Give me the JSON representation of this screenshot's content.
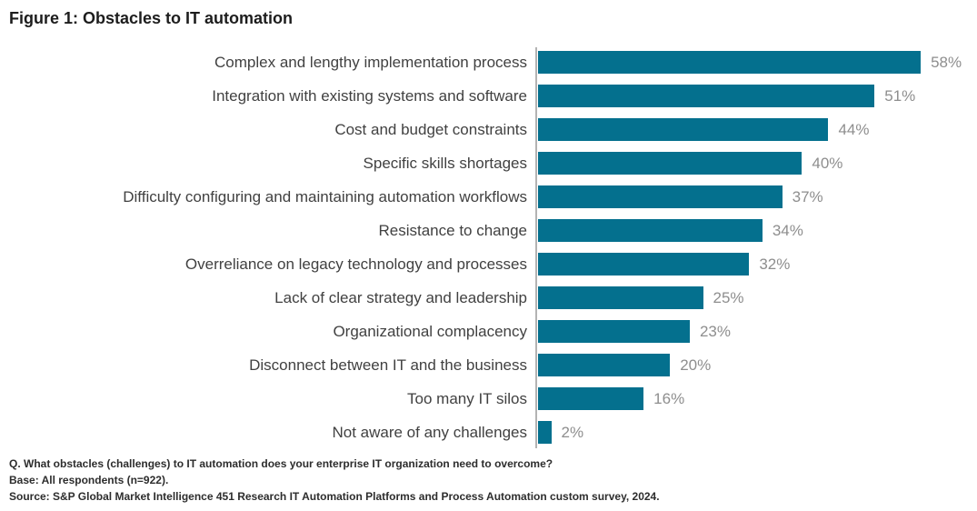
{
  "title": "Figure 1: Obstacles to IT automation",
  "chart_data": {
    "type": "bar",
    "orientation": "horizontal",
    "title": "Figure 1: Obstacles to IT automation",
    "categories": [
      "Complex and lengthy implementation process",
      "Integration with existing systems and software",
      "Cost and budget constraints",
      "Specific skills shortages",
      "Difficulty configuring and maintaining automation workflows",
      "Resistance to change",
      "Overreliance on legacy technology and processes",
      "Lack of clear strategy and leadership",
      "Organizational complacency",
      "Disconnect between IT and the business",
      "Too many IT silos",
      "Not aware of any challenges"
    ],
    "values": [
      58,
      51,
      44,
      40,
      37,
      34,
      32,
      25,
      23,
      20,
      16,
      2
    ],
    "value_suffix": "%",
    "xlabel": "",
    "ylabel": "",
    "xlim": [
      0,
      60
    ],
    "grid": false,
    "legend": "none",
    "bar_color": "#04708e",
    "value_label_color": "#8e8e8e",
    "axis_line_color": "#b3b3b3"
  },
  "footer": {
    "question": "Q. What obstacles (challenges) to IT automation does your enterprise IT organization need to overcome?",
    "base": "Base: All respondents (n=922).",
    "source": "Source: S&P Global Market Intelligence 451 Research IT Automation Platforms and Process Automation custom survey, 2024."
  }
}
